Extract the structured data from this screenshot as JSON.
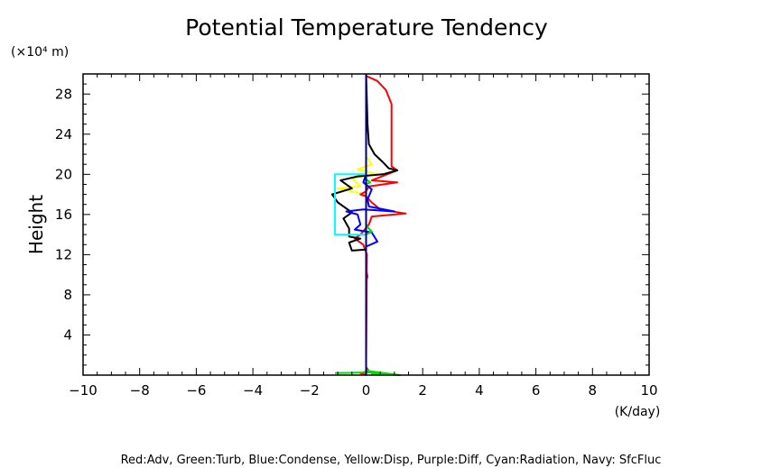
{
  "chart_data": {
    "type": "line",
    "title": "Potential Temperature Tendency",
    "ylabel": "Height",
    "yunit": "(×10⁴ m)",
    "xunit": "(K/day)",
    "xlim": [
      -10,
      10
    ],
    "ylim": [
      0,
      30
    ],
    "xticks": [
      -10,
      -8,
      -6,
      -4,
      -2,
      0,
      2,
      4,
      6,
      8,
      10
    ],
    "yticks": [
      4,
      8,
      12,
      16,
      20,
      24,
      28
    ],
    "tick_labels_x": [
      "−10",
      "−8",
      "−6",
      "−4",
      "−2",
      "0",
      "2",
      "4",
      "6",
      "8",
      "10"
    ],
    "tick_labels_y": [
      "4",
      "8",
      "12",
      "16",
      "20",
      "24",
      "28"
    ],
    "legend_text": "Red:Adv, Green:Turb, Blue:Condense, Yellow:Disp, Purple:Diff, Cyan:Radiation, Navy: SfcFluc",
    "series": [
      {
        "color": "#ffff00",
        "points": [
          [
            0,
            0
          ],
          [
            0,
            10
          ],
          [
            0,
            18
          ],
          [
            -1,
            18.6
          ],
          [
            -0.2,
            18.8
          ],
          [
            -0.5,
            19.6
          ],
          [
            0.4,
            20
          ],
          [
            -0.3,
            20.5
          ],
          [
            0.2,
            21
          ],
          [
            0,
            21.8
          ],
          [
            0,
            30
          ]
        ]
      },
      {
        "color": "#ff0000",
        "points": [
          [
            0,
            0
          ],
          [
            -0.2,
            0.2
          ],
          [
            0.1,
            0.4
          ],
          [
            0,
            0.8
          ],
          [
            0.02,
            9.5
          ],
          [
            0.05,
            9.8
          ],
          [
            0.02,
            10.3
          ],
          [
            0.03,
            12
          ],
          [
            -0.1,
            13
          ],
          [
            -0.4,
            13.6
          ],
          [
            -0.2,
            14
          ],
          [
            0.1,
            15
          ],
          [
            0.2,
            15.8
          ],
          [
            1.4,
            16.1
          ],
          [
            0.5,
            16.5
          ],
          [
            0.2,
            17.2
          ],
          [
            0,
            17.8
          ],
          [
            -0.2,
            18
          ],
          [
            0,
            18.3
          ],
          [
            0.1,
            18.8
          ],
          [
            1.1,
            19.2
          ],
          [
            0.2,
            19.4
          ],
          [
            1.1,
            20.4
          ],
          [
            0.9,
            20.8
          ],
          [
            0.9,
            25
          ],
          [
            0.9,
            27
          ],
          [
            0.7,
            28.4
          ],
          [
            0.4,
            29.3
          ],
          [
            0,
            29.8
          ]
        ]
      },
      {
        "color": "#000000",
        "points": [
          [
            0,
            0
          ],
          [
            0,
            12.5
          ],
          [
            -0.5,
            12.4
          ],
          [
            -0.6,
            13.2
          ],
          [
            -0.2,
            13.6
          ],
          [
            -0.6,
            13.8
          ],
          [
            -0.6,
            14.6
          ],
          [
            -0.8,
            15.6
          ],
          [
            -0.5,
            16.2
          ],
          [
            -1,
            17.2
          ],
          [
            -1.2,
            18
          ],
          [
            -0.5,
            18.6
          ],
          [
            -0.9,
            19.4
          ],
          [
            -0.3,
            19.8
          ],
          [
            0.6,
            20
          ],
          [
            1.1,
            20.4
          ],
          [
            0.8,
            20.6
          ],
          [
            0.6,
            21.2
          ],
          [
            0.3,
            22
          ],
          [
            0.1,
            23
          ],
          [
            0.05,
            25
          ],
          [
            0,
            30
          ]
        ]
      },
      {
        "color": "#0000ff",
        "points": [
          [
            0,
            0
          ],
          [
            0,
            12.8
          ],
          [
            0.4,
            13.3
          ],
          [
            0.2,
            14.2
          ],
          [
            -0.4,
            14.5
          ],
          [
            -0.2,
            15
          ],
          [
            -0.3,
            16
          ],
          [
            -0.7,
            16.3
          ],
          [
            -0.1,
            16.5
          ],
          [
            1,
            16.3
          ],
          [
            0.1,
            16.8
          ],
          [
            0.05,
            17.5
          ],
          [
            0.2,
            18.5
          ],
          [
            -0.1,
            19.2
          ],
          [
            0,
            20
          ],
          [
            0,
            30
          ]
        ]
      },
      {
        "color": "#00ffff",
        "points": [
          [
            0,
            14
          ],
          [
            -1.1,
            14
          ],
          [
            -1.1,
            20
          ],
          [
            0,
            20
          ]
        ]
      },
      {
        "color": "#00dd00",
        "points": [
          [
            -1.1,
            0.2
          ],
          [
            0.4,
            0.3
          ],
          [
            0.2,
            0.15
          ],
          [
            1.2,
            0
          ],
          [
            0.1,
            0.4
          ],
          [
            0,
            0.6
          ],
          [
            0,
            14
          ],
          [
            0.2,
            14.3
          ],
          [
            0.1,
            14.6
          ],
          [
            0,
            15
          ],
          [
            0,
            19
          ],
          [
            0.15,
            19.2
          ],
          [
            0,
            19.5
          ],
          [
            0,
            30
          ]
        ]
      },
      {
        "color": "#000080",
        "points": [
          [
            0,
            0
          ],
          [
            0,
            30
          ]
        ]
      }
    ]
  }
}
